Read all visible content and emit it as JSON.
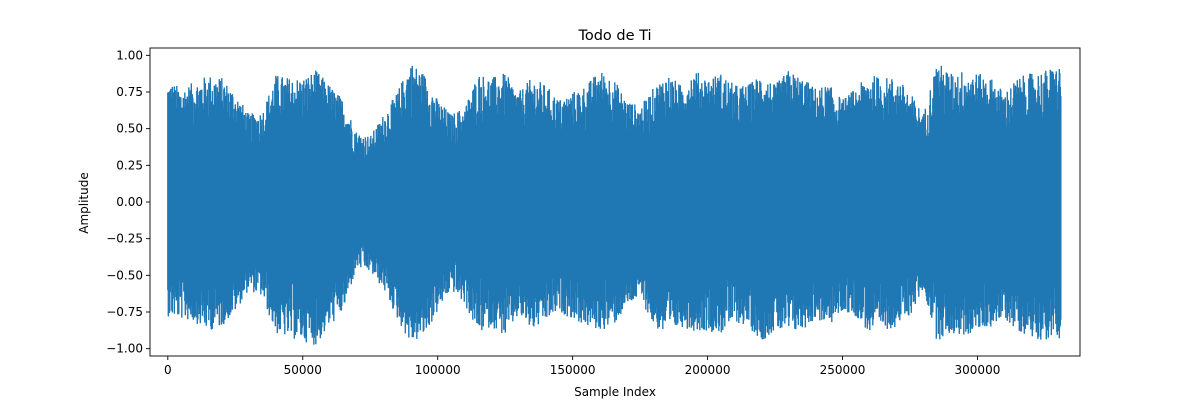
{
  "chart_data": {
    "type": "line",
    "title": "Todo de Ti",
    "xlabel": "Sample Index",
    "ylabel": "Amplitude",
    "xlim": [
      -6600,
      338000
    ],
    "ylim": [
      -1.05,
      1.05
    ],
    "xticks": [
      0,
      50000,
      100000,
      150000,
      200000,
      250000,
      300000
    ],
    "xtick_labels": [
      "0",
      "50000",
      "100000",
      "150000",
      "200000",
      "250000",
      "300000"
    ],
    "yticks": [
      -1.0,
      -0.75,
      -0.5,
      -0.25,
      0.0,
      0.25,
      0.5,
      0.75,
      1.0
    ],
    "ytick_labels": [
      "−1.00",
      "−0.75",
      "−0.50",
      "−0.25",
      "0.00",
      "0.25",
      "0.50",
      "0.75",
      "1.00"
    ],
    "grid": false,
    "legend": "none",
    "series": [
      {
        "color": "#1f77b4",
        "n_samples": 331000,
        "envelope": {
          "x": [
            0,
            5000,
            10000,
            15000,
            20000,
            25000,
            30000,
            35000,
            40000,
            45000,
            50000,
            55000,
            60000,
            65000,
            70000,
            75000,
            80000,
            85000,
            90000,
            95000,
            100000,
            105000,
            110000,
            115000,
            120000,
            125000,
            130000,
            135000,
            140000,
            145000,
            150000,
            155000,
            160000,
            165000,
            170000,
            175000,
            180000,
            185000,
            190000,
            195000,
            200000,
            205000,
            210000,
            215000,
            220000,
            225000,
            230000,
            235000,
            240000,
            245000,
            250000,
            255000,
            260000,
            265000,
            270000,
            275000,
            280000,
            285000,
            290000,
            295000,
            300000,
            305000,
            310000,
            315000,
            320000,
            325000,
            330000
          ],
          "upper": [
            0.83,
            0.78,
            0.82,
            0.87,
            0.85,
            0.75,
            0.6,
            0.62,
            0.87,
            0.85,
            0.85,
            0.9,
            0.8,
            0.7,
            0.48,
            0.45,
            0.6,
            0.75,
            0.96,
            0.88,
            0.7,
            0.6,
            0.65,
            0.88,
            0.85,
            0.88,
            0.75,
            0.85,
            0.8,
            0.7,
            0.75,
            0.8,
            0.9,
            0.85,
            0.7,
            0.65,
            0.78,
            0.88,
            0.8,
            0.9,
            0.85,
            0.88,
            0.8,
            0.8,
            0.88,
            0.8,
            0.9,
            0.85,
            0.78,
            0.8,
            0.7,
            0.78,
            0.87,
            0.85,
            0.85,
            0.75,
            0.6,
            0.96,
            0.88,
            0.9,
            0.88,
            0.85,
            0.75,
            0.85,
            0.88,
            0.9,
            0.93
          ],
          "lower": [
            -0.78,
            -0.8,
            -0.82,
            -0.88,
            -0.85,
            -0.75,
            -0.6,
            -0.65,
            -0.9,
            -0.93,
            -0.95,
            -0.98,
            -0.85,
            -0.75,
            -0.45,
            -0.48,
            -0.6,
            -0.8,
            -0.97,
            -0.92,
            -0.75,
            -0.6,
            -0.7,
            -0.9,
            -0.85,
            -0.92,
            -0.78,
            -0.88,
            -0.82,
            -0.75,
            -0.8,
            -0.85,
            -0.88,
            -0.85,
            -0.72,
            -0.65,
            -0.85,
            -0.92,
            -0.85,
            -0.88,
            -0.88,
            -0.9,
            -0.82,
            -0.85,
            -0.95,
            -0.88,
            -0.9,
            -0.88,
            -0.8,
            -0.85,
            -0.75,
            -0.78,
            -0.9,
            -0.88,
            -0.85,
            -0.78,
            -0.6,
            -0.95,
            -0.9,
            -0.92,
            -0.88,
            -0.85,
            -0.8,
            -0.88,
            -0.92,
            -0.95,
            -0.93
          ]
        }
      }
    ]
  }
}
